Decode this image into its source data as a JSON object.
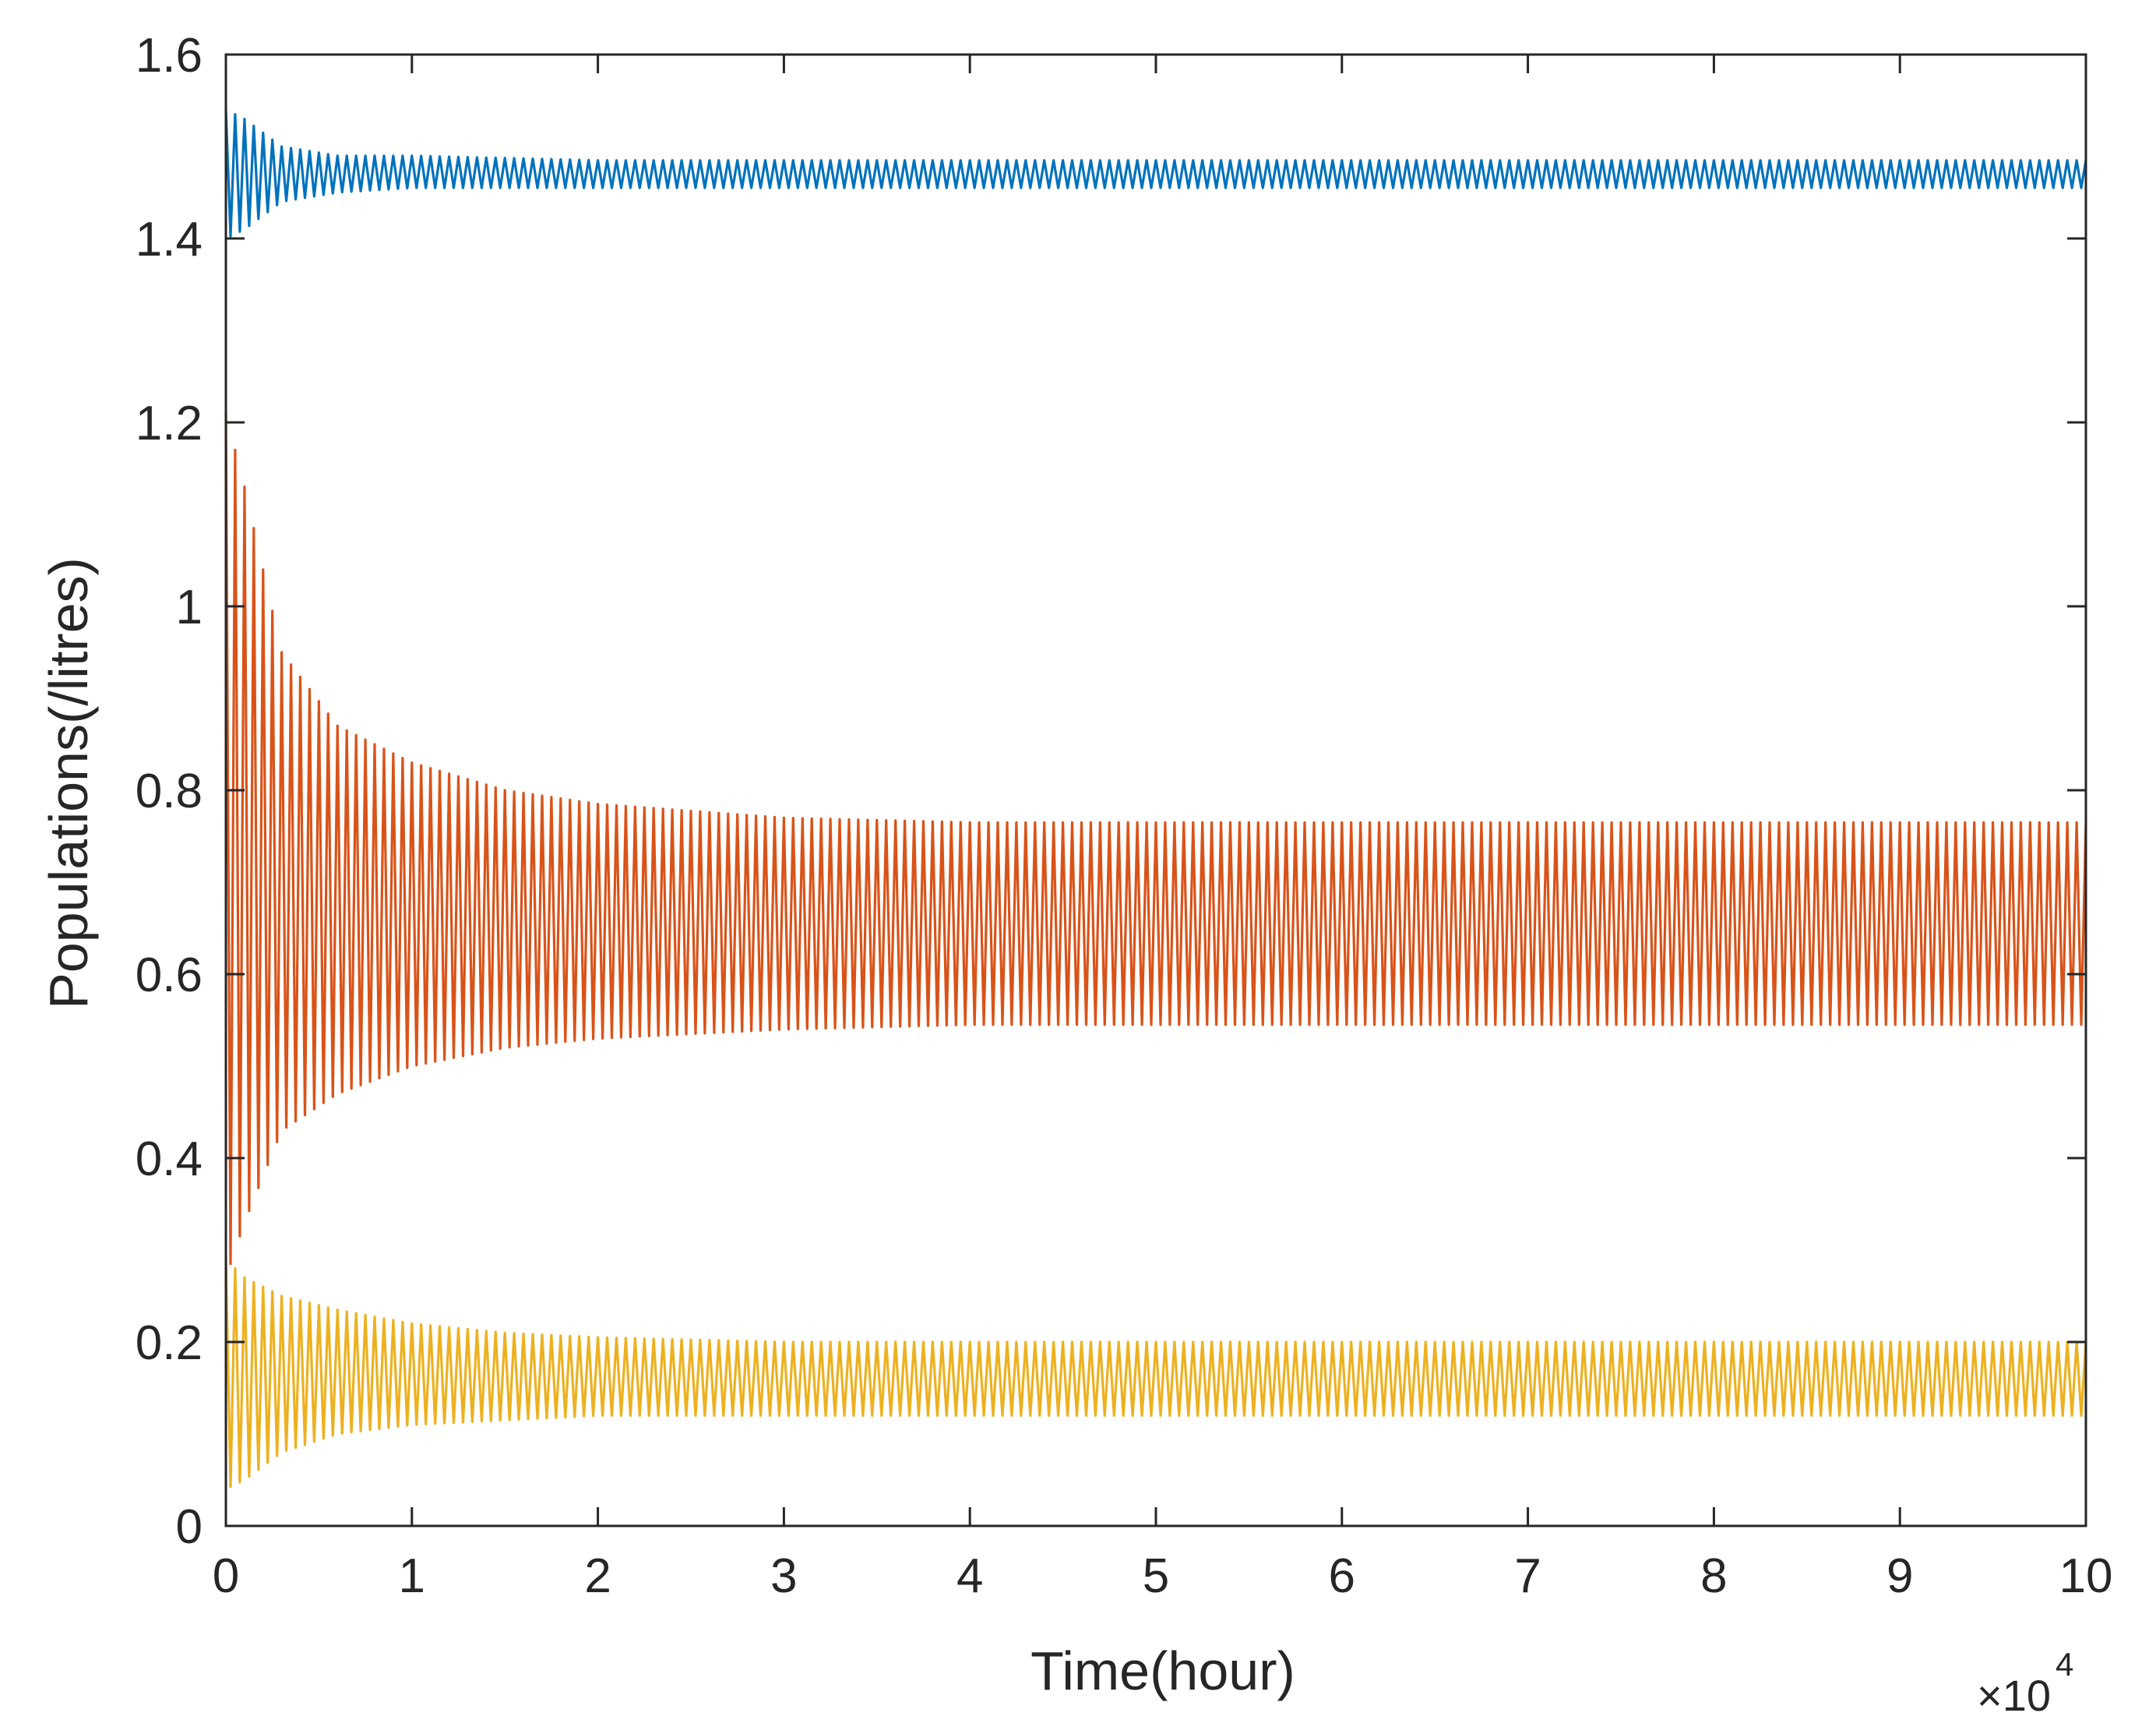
{
  "chart_data": {
    "type": "line",
    "title": "",
    "xlabel": "Time(hour)",
    "ylabel": "Populations(/litres)",
    "x_multiplier_label": "×10",
    "x_multiplier_exponent": "4",
    "xlim": [
      0,
      10
    ],
    "ylim": [
      0,
      1.6
    ],
    "x_ticks": [
      "0",
      "1",
      "2",
      "3",
      "4",
      "5",
      "6",
      "7",
      "8",
      "9",
      "10"
    ],
    "y_ticks": [
      "0",
      "0.2",
      "0.4",
      "0.6",
      "0.8",
      "1",
      "1.2",
      "1.4",
      "1.6"
    ],
    "grid": false,
    "legend": "none",
    "x_scale_note": "x values in units of 10^4 hours",
    "series": [
      {
        "color": "#0072BD",
        "envelope_x": [
          0,
          0.1,
          0.3,
          0.6,
          1.0,
          2.0,
          3.0,
          5.0,
          10.0
        ],
        "upper": [
          1.54,
          1.53,
          1.5,
          1.49,
          1.49,
          1.485,
          1.485,
          1.485,
          1.485
        ],
        "lower": [
          1.4,
          1.41,
          1.44,
          1.45,
          1.455,
          1.455,
          1.455,
          1.455,
          1.455
        ]
      },
      {
        "color": "#D95319",
        "envelope_x": [
          0,
          0.1,
          0.3,
          0.6,
          1.0,
          1.5,
          2.0,
          3.0,
          4.0,
          10.0
        ],
        "upper": [
          1.21,
          1.13,
          0.95,
          0.87,
          0.83,
          0.8,
          0.785,
          0.77,
          0.765,
          0.765
        ],
        "lower": [
          0.27,
          0.33,
          0.43,
          0.47,
          0.5,
          0.52,
          0.53,
          0.54,
          0.545,
          0.545
        ]
      },
      {
        "color": "#EDB120",
        "envelope_x": [
          0,
          0.1,
          0.3,
          0.6,
          1.0,
          1.5,
          2.0,
          3.0,
          10.0
        ],
        "upper": [
          0.29,
          0.27,
          0.25,
          0.235,
          0.22,
          0.21,
          0.205,
          0.2,
          0.2
        ],
        "lower": [
          0.04,
          0.05,
          0.08,
          0.1,
          0.11,
          0.115,
          0.12,
          0.12,
          0.12
        ]
      }
    ]
  }
}
